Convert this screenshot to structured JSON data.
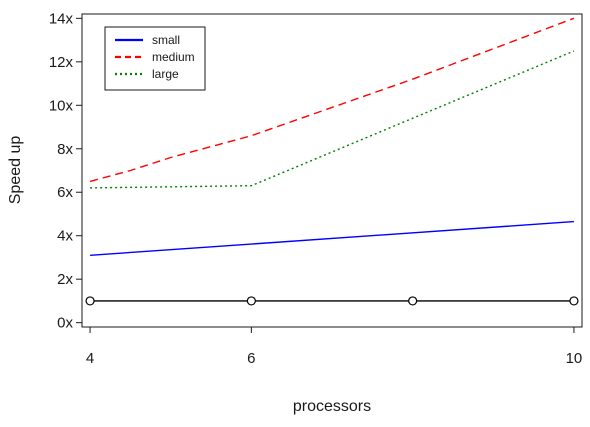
{
  "chart_data": {
    "type": "line",
    "title": "",
    "xlabel": "processors",
    "ylabel": "Speed up",
    "xlim": [
      3.9,
      10.1
    ],
    "ylim": [
      -0.2,
      14.2
    ],
    "xticks": [
      4,
      6,
      10
    ],
    "xtick_labels": [
      "4",
      "6",
      "10"
    ],
    "yticks": [
      0,
      2,
      4,
      6,
      8,
      10,
      12,
      14
    ],
    "ytick_labels": [
      "0x",
      "2x",
      "4x",
      "6x",
      "8x",
      "10x",
      "12x",
      "14x"
    ],
    "grid": false,
    "legend_position": "top-left",
    "series": [
      {
        "name": "small",
        "color": "#0000ff",
        "line_style": "solid",
        "x": [
          4,
          10
        ],
        "y": [
          3.1,
          4.65
        ]
      },
      {
        "name": "medium",
        "color": "#ff0000",
        "line_style": "dashed",
        "x": [
          4,
          4.5,
          5,
          6,
          8,
          10
        ],
        "y": [
          6.5,
          7.0,
          7.6,
          8.6,
          11.2,
          14.0
        ]
      },
      {
        "name": "large",
        "color": "#008000",
        "line_style": "dotted",
        "x": [
          4,
          5,
          6,
          8,
          10
        ],
        "y": [
          6.2,
          6.25,
          6.3,
          9.4,
          12.5
        ]
      },
      {
        "color": "#000000",
        "line_style": "solid",
        "markers": "open-circle",
        "x": [
          4,
          6,
          8,
          10
        ],
        "y": [
          1,
          1,
          1,
          1
        ]
      }
    ]
  }
}
